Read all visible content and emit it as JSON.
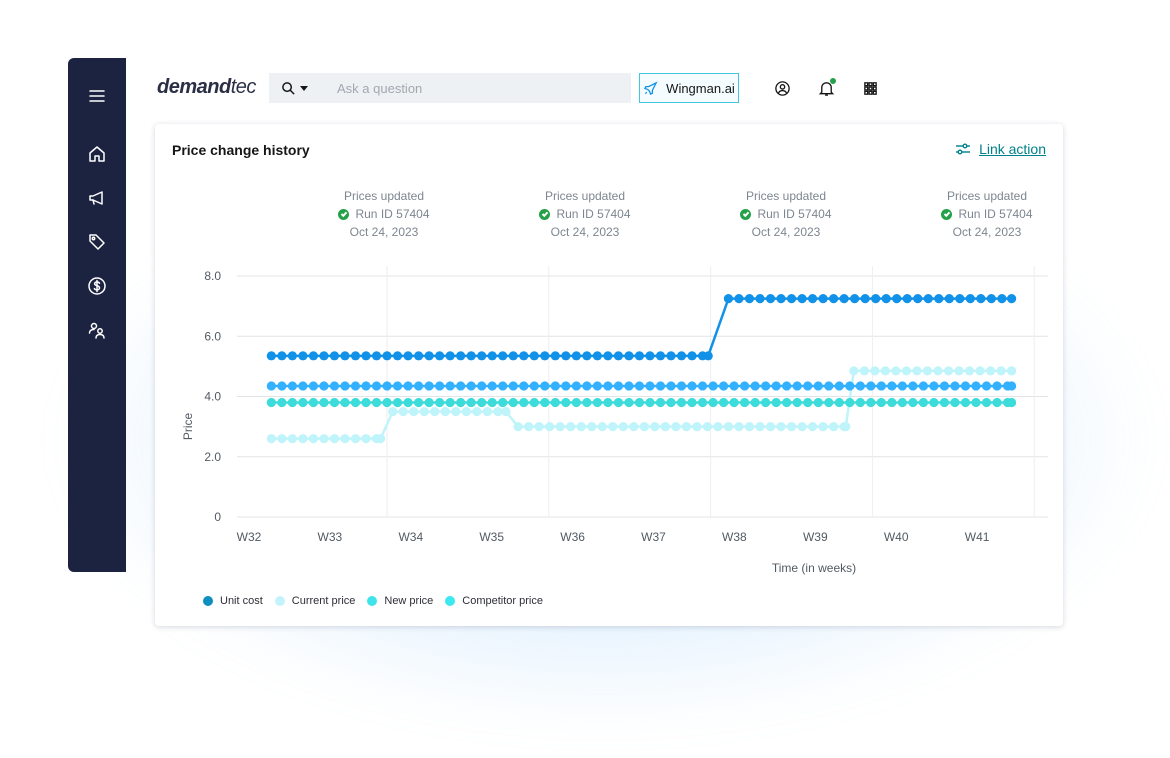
{
  "app": {
    "logo_bold": "demand",
    "logo_light": "tec"
  },
  "sidebar": {
    "items": [
      {
        "icon": "menu-icon",
        "label": "Menu"
      },
      {
        "icon": "home-icon",
        "label": "Home"
      },
      {
        "icon": "megaphone-icon",
        "label": "Campaigns"
      },
      {
        "icon": "tags-icon",
        "label": "Pricing"
      },
      {
        "icon": "dollar-icon",
        "label": "Finance"
      },
      {
        "icon": "users-icon",
        "label": "Users"
      }
    ]
  },
  "search": {
    "placeholder": "Ask a question",
    "value": ""
  },
  "wingman": {
    "label": "Wingman.ai"
  },
  "notifications": {
    "dot_color": "#24a148"
  },
  "card": {
    "title": "Price change history",
    "link_action": "Link action"
  },
  "annotations": [
    {
      "line1": "Prices updated",
      "run": "Run ID 57404",
      "date": "Oct 24, 2023"
    },
    {
      "line1": "Prices updated",
      "run": "Run ID 57404",
      "date": "Oct 24, 2023"
    },
    {
      "line1": "Prices updated",
      "run": "Run ID 57404",
      "date": "Oct 24, 2023"
    },
    {
      "line1": "Prices updated",
      "run": "Run ID 57404",
      "date": "Oct 24, 2023"
    }
  ],
  "chart_data": {
    "type": "line",
    "xlabel": "Time (in weeks)",
    "ylabel": "Price",
    "x_ticks": [
      "W32",
      "W33",
      "W34",
      "W35",
      "W36",
      "W37",
      "W38",
      "W39",
      "W40",
      "W41"
    ],
    "y_ticks": [
      "0",
      "2.0",
      "4.0",
      "6.0",
      "8.0"
    ],
    "ylim": [
      0,
      8
    ],
    "x_range": [
      32,
      42
    ],
    "grid": true,
    "legend_position": "bottom-left",
    "series": [
      {
        "name": "Unit cost",
        "color": "#1192e8",
        "points": [
          [
            32.4,
            5.35
          ],
          [
            37.8,
            5.35
          ],
          [
            38.05,
            7.25
          ],
          [
            41.55,
            7.25
          ]
        ]
      },
      {
        "name": "Current price",
        "color": "#bff4fa",
        "points": [
          [
            32.4,
            2.6
          ],
          [
            33.75,
            2.6
          ],
          [
            33.9,
            3.5
          ],
          [
            35.3,
            3.5
          ],
          [
            35.45,
            3.0
          ],
          [
            39.5,
            3.0
          ],
          [
            39.6,
            4.85
          ],
          [
            41.55,
            4.85
          ]
        ]
      },
      {
        "name": "New price",
        "color": "#3ddbd9",
        "points": [
          [
            32.4,
            3.8
          ],
          [
            41.55,
            3.8
          ]
        ]
      },
      {
        "name": "Competitor price",
        "color": "#33b1ff",
        "points": [
          [
            32.4,
            4.35
          ],
          [
            41.55,
            4.35
          ]
        ]
      }
    ],
    "legend": [
      {
        "label": "Unit cost",
        "color": "#0f8fbf"
      },
      {
        "label": "Current price",
        "color": "#c4f3fb"
      },
      {
        "label": "New price",
        "color": "#3ee4ea"
      },
      {
        "label": "Competitor price",
        "color": "#3de8f0"
      }
    ]
  }
}
